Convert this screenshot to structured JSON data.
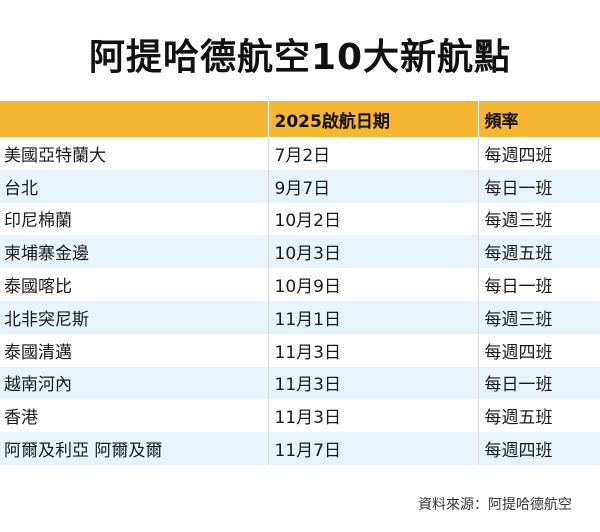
{
  "title": "阿提哈德航空10大新航點",
  "table": {
    "headers": [
      "",
      "2025啟航日期",
      "頻率"
    ],
    "rows": [
      [
        "美國亞特蘭大",
        "7月2日",
        "每週四班"
      ],
      [
        "台北",
        "9月7日",
        "每日一班"
      ],
      [
        "印尼棉蘭",
        "10月2日",
        "每週三班"
      ],
      [
        "柬埔寨金邊",
        "10月3日",
        "每週五班"
      ],
      [
        "泰國喀比",
        "10月9日",
        "每日一班"
      ],
      [
        "北非突尼斯",
        "11月1日",
        "每週三班"
      ],
      [
        "泰國清邁",
        "11月3日",
        "每週四班"
      ],
      [
        "越南河內",
        "11月3日",
        "每日一班"
      ],
      [
        "香港",
        "11月3日",
        "每週五班"
      ],
      [
        "阿爾及利亞 阿爾及爾",
        "11月7日",
        "每週四班"
      ]
    ]
  },
  "source": "資料來源：阿提哈德航空",
  "colors": {
    "header": "#f5b731",
    "stripe": "#e7f5fb"
  }
}
